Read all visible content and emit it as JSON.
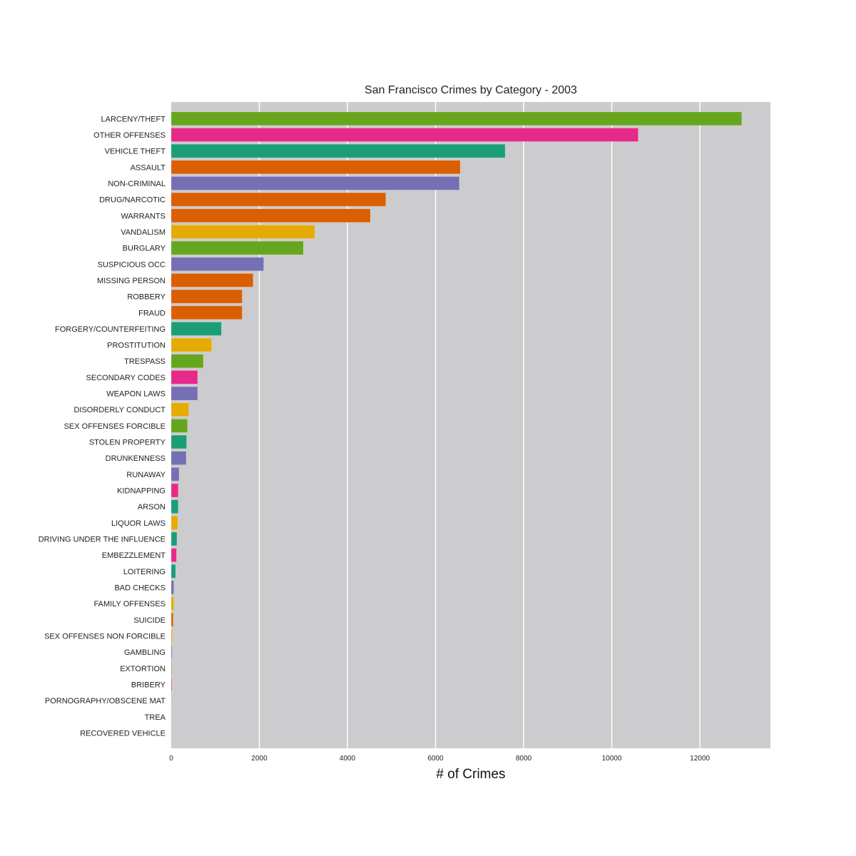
{
  "chart_data": {
    "type": "bar",
    "orientation": "horizontal",
    "title": "San Francisco Crimes by Category - 2003",
    "xlabel": "# of Crimes",
    "ylabel": "",
    "xlim": [
      0,
      13600
    ],
    "xticks": [
      0,
      2000,
      4000,
      6000,
      8000,
      10000,
      12000
    ],
    "grid": true,
    "legend": "none",
    "colors": {
      "background": "#cccbcd",
      "grid": "#ffffff",
      "green": "#66a61e",
      "pink": "#e7298a",
      "teal": "#1b9e77",
      "orange": "#d95f02",
      "purple": "#7570b3",
      "gold": "#e6ab02"
    },
    "categories": [
      "LARCENY/THEFT",
      "OTHER OFFENSES",
      "VEHICLE THEFT",
      "ASSAULT",
      "NON-CRIMINAL",
      "DRUG/NARCOTIC",
      "WARRANTS",
      "VANDALISM",
      "BURGLARY",
      "SUSPICIOUS OCC",
      "MISSING PERSON",
      "ROBBERY",
      "FRAUD",
      "FORGERY/COUNTERFEITING",
      "PROSTITUTION",
      "TRESPASS",
      "SECONDARY CODES",
      "WEAPON LAWS",
      "DISORDERLY CONDUCT",
      "SEX OFFENSES FORCIBLE",
      "STOLEN PROPERTY",
      "DRUNKENNESS",
      "RUNAWAY",
      "KIDNAPPING",
      "ARSON",
      "LIQUOR LAWS",
      "DRIVING UNDER THE INFLUENCE",
      "EMBEZZLEMENT",
      "LOITERING",
      "BAD CHECKS",
      "FAMILY OFFENSES",
      "SUICIDE",
      "SEX OFFENSES NON FORCIBLE",
      "GAMBLING",
      "EXTORTION",
      "BRIBERY",
      "PORNOGRAPHY/OBSCENE MAT",
      "TREA",
      "RECOVERED VEHICLE"
    ],
    "values": [
      12950,
      10600,
      7580,
      6560,
      6540,
      4870,
      4520,
      3260,
      3000,
      2100,
      1860,
      1610,
      1610,
      1140,
      920,
      730,
      600,
      600,
      400,
      370,
      350,
      340,
      180,
      160,
      160,
      150,
      130,
      120,
      100,
      60,
      60,
      45,
      25,
      20,
      15,
      15,
      3,
      2,
      1
    ],
    "bar_colors": [
      "green",
      "pink",
      "teal",
      "orange",
      "purple",
      "orange",
      "orange",
      "gold",
      "green",
      "purple",
      "orange",
      "orange",
      "orange",
      "teal",
      "gold",
      "green",
      "pink",
      "purple",
      "gold",
      "green",
      "teal",
      "purple",
      "purple",
      "pink",
      "teal",
      "gold",
      "teal",
      "pink",
      "teal",
      "purple",
      "gold",
      "orange",
      "gold",
      "purple",
      "green",
      "pink",
      "purple",
      "purple",
      "purple"
    ]
  }
}
